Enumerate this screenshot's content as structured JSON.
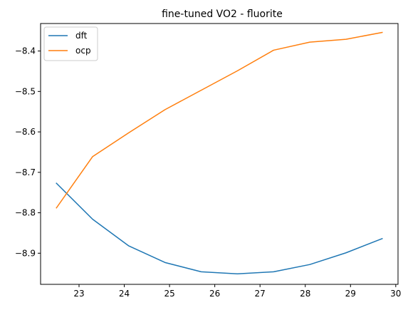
{
  "chart_data": {
    "type": "line",
    "title": "fine-tuned VO2 - fluorite",
    "xlabel": "",
    "ylabel": "",
    "xlim": [
      22.15,
      30.05
    ],
    "ylim": [
      -8.977,
      -8.332
    ],
    "xticks": [
      23,
      24,
      25,
      26,
      27,
      28,
      29,
      30
    ],
    "yticks": [
      -8.9,
      -8.8,
      -8.7,
      -8.6,
      -8.5,
      -8.4
    ],
    "ytick_labels": [
      "−8.9",
      "−8.8",
      "−8.7",
      "−8.6",
      "−8.5",
      "−8.4"
    ],
    "grid": false,
    "legend_position": "top-left",
    "series": [
      {
        "name": "dft",
        "color": "#1f77b4",
        "x": [
          22.5,
          23.3,
          24.1,
          24.9,
          25.7,
          26.5,
          27.3,
          28.1,
          28.9,
          29.7
        ],
        "y": [
          -8.727,
          -8.816,
          -8.882,
          -8.923,
          -8.946,
          -8.951,
          -8.946,
          -8.928,
          -8.899,
          -8.864
        ]
      },
      {
        "name": "ocp",
        "color": "#ff7f0e",
        "x": [
          22.5,
          23.3,
          24.1,
          24.9,
          25.7,
          26.5,
          27.3,
          28.1,
          28.9,
          29.7
        ],
        "y": [
          -8.788,
          -8.661,
          -8.602,
          -8.545,
          -8.497,
          -8.449,
          -8.398,
          -8.378,
          -8.371,
          -8.354
        ]
      }
    ]
  }
}
